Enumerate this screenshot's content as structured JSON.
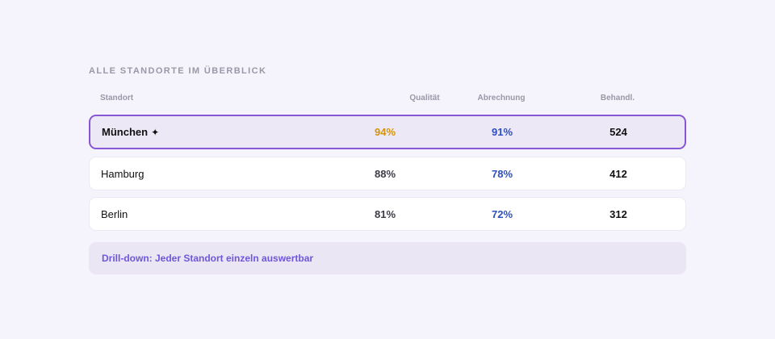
{
  "section_title": "ALLE STANDORTE IM ÜBERBLICK",
  "columns": {
    "location": "Standort",
    "quality": "Qualität",
    "billing": "Abrechnung",
    "treatments": "Behandl."
  },
  "rows": [
    {
      "location": "München",
      "marker": "✦",
      "quality": "94%",
      "billing": "91%",
      "treatments": "524",
      "selected": true
    },
    {
      "location": "Hamburg",
      "quality": "88%",
      "billing": "78%",
      "treatments": "412",
      "selected": false
    },
    {
      "location": "Berlin",
      "quality": "81%",
      "billing": "72%",
      "treatments": "312",
      "selected": false
    }
  ],
  "footer_note": "Drill-down: Jeder Standort einzeln auswertbar",
  "colors": {
    "background": "#f5f3fc",
    "selected_border": "#8758d6",
    "quality_highlight": "#d4940a",
    "billing_blue": "#2d4fbf",
    "footer_text": "#6f56d9"
  }
}
